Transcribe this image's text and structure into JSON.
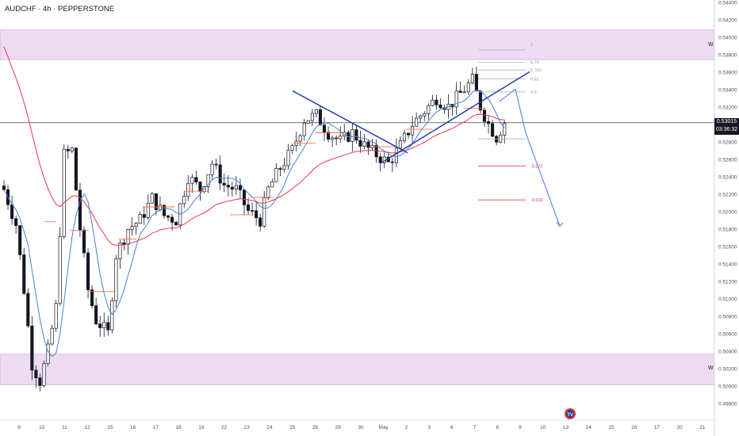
{
  "header": {
    "title": "AUDCHF · 4h · PEPPERSTONE"
  },
  "price_tag": {
    "price": "0.53015",
    "countdown": "03:36:32"
  },
  "zones": [
    {
      "label": "W",
      "from": 0.5374,
      "to": 0.5408,
      "color": "#e1bee7"
    },
    {
      "label": "W",
      "from": 0.5001,
      "to": 0.5036,
      "color": "#e1bee7"
    }
  ],
  "fib_labels": [
    "1",
    "0.79",
    "0.705",
    "0.62",
    "0.5",
    "-0.272",
    "-0.618"
  ],
  "chart_data": {
    "type": "candlestick",
    "title": "",
    "symbol": "AUDCHF",
    "timeframe": "4h",
    "source": "PEPPERSTONE",
    "current_price": 0.53015,
    "ylim": [
      0.4975,
      0.5445
    ],
    "y_ticks": [
      "0.54400",
      "0.54200",
      "0.54000",
      "0.53800",
      "0.53600",
      "0.53400",
      "0.53200",
      "0.53000",
      "0.52800",
      "0.52600",
      "0.52400",
      "0.52200",
      "0.52000",
      "0.51800",
      "0.51600",
      "0.51400",
      "0.51200",
      "0.51000",
      "0.50800",
      "0.50600",
      "0.50400",
      "0.50200",
      "0.50000",
      "0.49800"
    ],
    "x_ticks": [
      "9",
      "10",
      "11",
      "12",
      "15",
      "16",
      "17",
      "18",
      "19",
      "22",
      "23",
      "24",
      "25",
      "26",
      "29",
      "30",
      "May",
      "2",
      "3",
      "6",
      "7",
      "8",
      "9",
      "10",
      "13",
      "14",
      "15",
      "16",
      "17",
      "20",
      "21"
    ],
    "projection": {
      "type": "arrow",
      "from_price": 0.5334,
      "to_price": 0.5183
    },
    "series": [
      {
        "name": "",
        "color": "#f23645",
        "type": "moving-average"
      },
      {
        "name": "",
        "color": "#4a7fd8",
        "type": "moving-average"
      }
    ]
  }
}
